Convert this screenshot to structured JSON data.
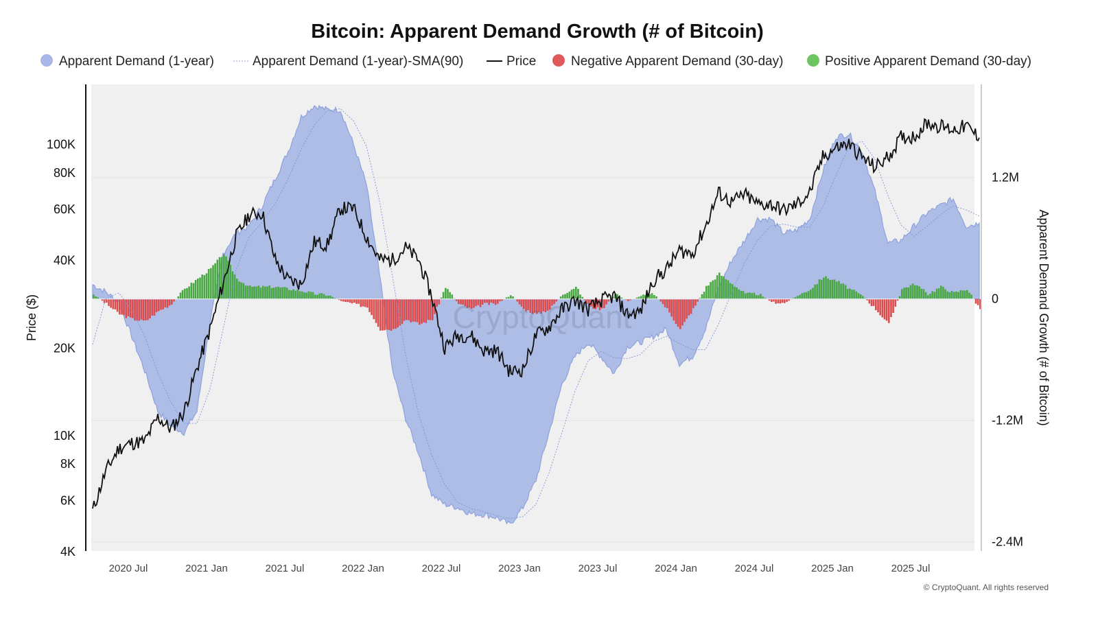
{
  "chart_data": {
    "type": "area",
    "title": "Bitcoin: Apparent Demand Growth (# of Bitcoin)",
    "legend": {
      "position": "top",
      "items": [
        {
          "label": "Apparent Demand (1-year)",
          "marker": "dot",
          "color": "#a8b7e6"
        },
        {
          "label": "Apparent Demand (1-year)-SMA(90)",
          "marker": "dotted-line",
          "color": "#8b9fd8"
        },
        {
          "label": "Price",
          "marker": "line",
          "color": "#111111"
        },
        {
          "label": "Negative Apparent Demand (30-day)",
          "marker": "dot",
          "color": "#e05a5a"
        },
        {
          "label": "Positive Apparent Demand (30-day)",
          "marker": "dot",
          "color": "#6cc463"
        }
      ]
    },
    "left_axis": {
      "label": "Price ($)",
      "scale": "log",
      "range": [
        4000,
        160000
      ],
      "ticks": [
        "4K",
        "6K",
        "8K",
        "10K",
        "20K",
        "40K",
        "60K",
        "80K",
        "100K"
      ],
      "tick_values": [
        4000,
        6000,
        8000,
        10000,
        20000,
        40000,
        60000,
        80000,
        100000
      ]
    },
    "right_axis": {
      "label": "Apparent Demand Growth (# of Bitcoin)",
      "range": [
        -2.49,
        2.12
      ],
      "unit": "M",
      "ticks": [
        "1.2M",
        "0",
        "-1.2M",
        "-2.4M"
      ],
      "tick_values": [
        1.2,
        0,
        -1.2,
        -2.4
      ]
    },
    "x_axis": {
      "range": [
        "2020-03",
        "2025-11"
      ],
      "ticks": [
        "2020 Jul",
        "2021 Jan",
        "2021 Jul",
        "2022 Jan",
        "2022 Jul",
        "2023 Jan",
        "2023 Jul",
        "2024 Jan",
        "2024 Jul",
        "2025 Jan",
        "2025 Jul"
      ],
      "tick_dates": [
        "2020-07",
        "2021-01",
        "2021-07",
        "2022-01",
        "2022-07",
        "2023-01",
        "2023-07",
        "2024-01",
        "2024-07",
        "2025-01",
        "2025-07"
      ]
    },
    "grid": true,
    "x": [
      "2020-03",
      "2020-04",
      "2020-05",
      "2020-06",
      "2020-07",
      "2020-08",
      "2020-09",
      "2020-10",
      "2020-11",
      "2020-12",
      "2021-01",
      "2021-02",
      "2021-03",
      "2021-04",
      "2021-05",
      "2021-06",
      "2021-07",
      "2021-08",
      "2021-09",
      "2021-10",
      "2021-11",
      "2021-12",
      "2022-01",
      "2022-02",
      "2022-03",
      "2022-04",
      "2022-05",
      "2022-06",
      "2022-07",
      "2022-08",
      "2022-09",
      "2022-10",
      "2022-11",
      "2022-12",
      "2023-01",
      "2023-02",
      "2023-03",
      "2023-04",
      "2023-05",
      "2023-06",
      "2023-07",
      "2023-08",
      "2023-09",
      "2023-10",
      "2023-11",
      "2023-12",
      "2024-01",
      "2024-02",
      "2024-03",
      "2024-04",
      "2024-05",
      "2024-06",
      "2024-07",
      "2024-08",
      "2024-09",
      "2024-10",
      "2024-11",
      "2024-12",
      "2025-01",
      "2025-02",
      "2025-03",
      "2025-04",
      "2025-05",
      "2025-06",
      "2025-07",
      "2025-08",
      "2025-09",
      "2025-10",
      "2025-11"
    ],
    "series": [
      {
        "name": "Apparent Demand (1-year)",
        "axis": "right",
        "unit": "M BTC",
        "values": [
          0.14,
          0.07,
          -0.03,
          -0.37,
          -0.71,
          -1.11,
          -1.25,
          -1.32,
          -1.11,
          -0.23,
          0.45,
          0.65,
          0.72,
          0.92,
          1.19,
          1.46,
          1.8,
          1.91,
          1.87,
          1.87,
          1.53,
          1.13,
          0.24,
          -0.71,
          -1.18,
          -1.52,
          -1.93,
          -2.03,
          -2.06,
          -2.12,
          -2.13,
          -2.16,
          -2.23,
          -2.06,
          -1.79,
          -1.32,
          -0.84,
          -0.57,
          -0.43,
          -0.57,
          -0.74,
          -0.47,
          -0.43,
          -0.37,
          -0.3,
          -0.64,
          -0.57,
          -0.3,
          0.11,
          0.38,
          0.58,
          0.79,
          0.79,
          0.65,
          0.68,
          0.79,
          1.26,
          1.6,
          1.63,
          1.46,
          1.06,
          0.55,
          0.58,
          0.72,
          0.85,
          0.92,
          0.99,
          0.72,
          0.75
        ]
      },
      {
        "name": "Apparent Demand (1-year)-SMA(90)",
        "axis": "right",
        "unit": "M BTC",
        "values": [
          -0.45,
          0.0,
          0.06,
          -0.11,
          -0.37,
          -0.73,
          -1.02,
          -1.23,
          -1.23,
          -0.89,
          -0.3,
          0.29,
          0.61,
          0.76,
          0.94,
          1.19,
          1.48,
          1.72,
          1.86,
          1.88,
          1.76,
          1.51,
          0.97,
          0.22,
          -0.55,
          -1.14,
          -1.54,
          -1.83,
          -2.01,
          -2.07,
          -2.1,
          -2.14,
          -2.17,
          -2.15,
          -2.03,
          -1.72,
          -1.32,
          -0.91,
          -0.61,
          -0.52,
          -0.58,
          -0.59,
          -0.55,
          -0.42,
          -0.37,
          -0.44,
          -0.5,
          -0.5,
          -0.25,
          0.06,
          0.36,
          0.58,
          0.72,
          0.74,
          0.71,
          0.71,
          0.91,
          1.22,
          1.5,
          1.56,
          1.38,
          1.02,
          0.73,
          0.62,
          0.72,
          0.83,
          0.92,
          0.88,
          0.82
        ]
      },
      {
        "name": "Price",
        "axis": "left",
        "unit": "USD",
        "values": [
          5500,
          7500,
          9000,
          9400,
          9500,
          11500,
          10500,
          12000,
          17000,
          23000,
          33000,
          48000,
          57000,
          58000,
          40000,
          34000,
          33000,
          46000,
          45000,
          60000,
          60000,
          48000,
          40000,
          40000,
          44000,
          40000,
          30000,
          20000,
          22000,
          22000,
          19500,
          19500,
          16500,
          16800,
          22000,
          23500,
          27000,
          29000,
          27000,
          29000,
          30000,
          26000,
          26500,
          34000,
          37000,
          43000,
          42000,
          52000,
          68000,
          63000,
          67000,
          62000,
          62000,
          59000,
          62000,
          68000,
          90000,
          97000,
          100000,
          90000,
          83000,
          90000,
          105000,
          106000,
          118000,
          115000,
          112000,
          115000,
          105000
        ]
      },
      {
        "name": "Apparent Demand (30-day)",
        "axis": "right",
        "unit": "M BTC",
        "positive_color": "#4aa843",
        "negative_color": "#dc4c4c",
        "values": [
          0.05,
          -0.05,
          -0.15,
          -0.2,
          -0.22,
          -0.12,
          -0.05,
          0.1,
          0.2,
          0.3,
          0.45,
          0.2,
          0.12,
          0.12,
          0.12,
          0.1,
          0.08,
          0.05,
          0.04,
          -0.02,
          -0.05,
          -0.08,
          -0.3,
          -0.3,
          -0.2,
          -0.25,
          -0.2,
          0.12,
          -0.05,
          -0.1,
          -0.05,
          -0.05,
          0.05,
          -0.1,
          -0.15,
          -0.1,
          0.05,
          0.12,
          -0.08,
          -0.1,
          0.05,
          -0.02,
          0.03,
          0.05,
          -0.1,
          -0.3,
          -0.1,
          0.12,
          0.25,
          0.15,
          0.05,
          0.05,
          -0.03,
          -0.04,
          0.03,
          0.1,
          0.22,
          0.18,
          0.1,
          0.03,
          -0.1,
          -0.25,
          0.1,
          0.15,
          0.05,
          0.12,
          0.06,
          0.1,
          -0.1
        ]
      }
    ],
    "watermark": "CryptoQuant"
  },
  "copyright": "© CryptoQuant. All rights reserved"
}
